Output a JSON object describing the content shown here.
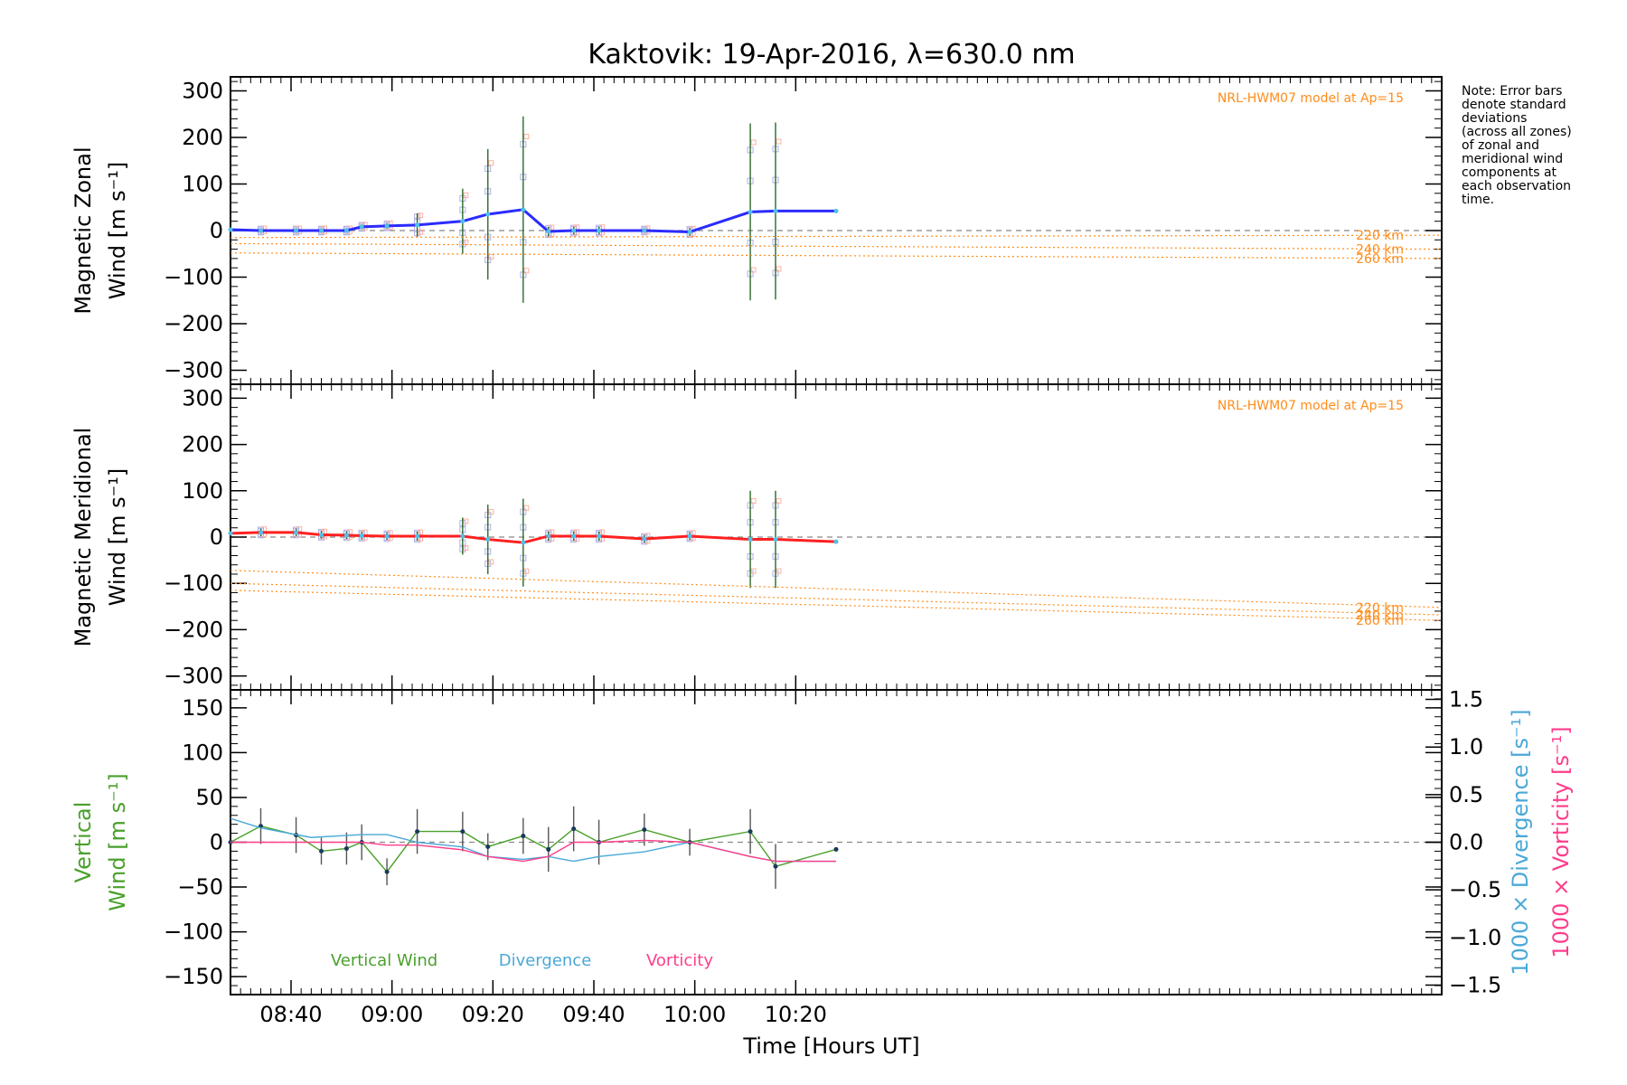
{
  "title": "Kaktovik: 19-Apr-2016, λ=630.0 nm",
  "note_lines": [
    "Note: Error bars",
    "denote standard",
    "deviations",
    "(across all zones)",
    "of zonal and",
    "meridional wind",
    "components at",
    "each observation",
    "time."
  ],
  "model_label": "NRL-HWM07 model at Ap=15",
  "xlabel": "Time [Hours UT]",
  "colors": {
    "zonal": "#2b2bff",
    "meridional": "#ff2020",
    "vertical": "#4aa02c",
    "divergence": "#4aa8d8",
    "vorticity": "#ff3d8b",
    "model": "#ff8c1a",
    "zone_zonal": "#b0b0e8",
    "zone_mer": "#b0b0e8",
    "zone_model": "#ffb0a0"
  },
  "chart_data": [
    {
      "type": "line",
      "panel": "zonal",
      "ylabel": [
        "Magnetic Zonal",
        "Wind [m s⁻¹]"
      ],
      "ylim": [
        -330,
        330
      ],
      "yticks": [
        300,
        200,
        100,
        0,
        -100,
        -200,
        -300
      ],
      "yticklabels": [
        "300",
        "200",
        "100",
        "0",
        "−100",
        "−200",
        "−300"
      ],
      "xlim": [
        508,
        748
      ],
      "xticks": [
        520,
        540,
        560,
        580,
        600,
        620
      ],
      "xticklabels": [
        "08:40",
        "09:00",
        "09:20",
        "09:40",
        "10:00",
        "10:20"
      ],
      "series": [
        {
          "key": "wind",
          "x": [
            508,
            514,
            521,
            526,
            531,
            534,
            539,
            545,
            554,
            559,
            566,
            571,
            576,
            581,
            590,
            599,
            611,
            616,
            628
          ],
          "y": [
            2,
            0,
            0,
            0,
            0,
            8,
            10,
            12,
            20,
            35,
            45,
            -2,
            0,
            0,
            0,
            -3,
            40,
            42,
            42
          ]
        },
        {
          "key": "model",
          "name": "220 km",
          "x": [
            508,
            748
          ],
          "y": [
            -15,
            -10
          ]
        },
        {
          "key": "model",
          "name": "240 km",
          "x": [
            508,
            748
          ],
          "y": [
            -28,
            -40
          ]
        },
        {
          "key": "model",
          "name": "260 km",
          "x": [
            508,
            748
          ],
          "y": [
            -48,
            -60
          ]
        }
      ],
      "errorbars": {
        "x": [
          514,
          521,
          526,
          531,
          534,
          539,
          545,
          554,
          559,
          566,
          571,
          576,
          581,
          590,
          599,
          611,
          616
        ],
        "y": [
          0,
          0,
          0,
          0,
          8,
          10,
          12,
          20,
          35,
          45,
          -2,
          0,
          0,
          0,
          -3,
          40,
          42
        ],
        "err": [
          5,
          5,
          5,
          5,
          5,
          6,
          25,
          70,
          140,
          200,
          10,
          8,
          8,
          5,
          8,
          190,
          190
        ]
      }
    },
    {
      "type": "line",
      "panel": "meridional",
      "ylabel": [
        "Magnetic Meridional",
        "Wind [m s⁻¹]"
      ],
      "ylim": [
        -330,
        330
      ],
      "yticks": [
        300,
        200,
        100,
        0,
        -100,
        -200,
        -300
      ],
      "yticklabels": [
        "300",
        "200",
        "100",
        "0",
        "−100",
        "−200",
        "−300"
      ],
      "xlim": [
        508,
        748
      ],
      "series": [
        {
          "key": "wind",
          "x": [
            508,
            514,
            521,
            526,
            531,
            534,
            539,
            545,
            554,
            559,
            566,
            571,
            576,
            581,
            590,
            599,
            611,
            616,
            628
          ],
          "y": [
            8,
            10,
            10,
            5,
            4,
            3,
            2,
            2,
            2,
            -5,
            -12,
            2,
            2,
            2,
            -4,
            2,
            -5,
            -5,
            -10
          ]
        },
        {
          "key": "model",
          "name": "220 km",
          "x": [
            508,
            748
          ],
          "y": [
            -72,
            -152
          ]
        },
        {
          "key": "model",
          "name": "240 km",
          "x": [
            508,
            748
          ],
          "y": [
            -100,
            -168
          ]
        },
        {
          "key": "model",
          "name": "260 km",
          "x": [
            508,
            748
          ],
          "y": [
            -115,
            -180
          ]
        }
      ],
      "errorbars": {
        "x": [
          514,
          521,
          526,
          531,
          534,
          539,
          545,
          554,
          559,
          566,
          571,
          576,
          581,
          590,
          599,
          611,
          616
        ],
        "y": [
          10,
          10,
          5,
          4,
          3,
          2,
          2,
          2,
          -5,
          -12,
          2,
          2,
          2,
          -4,
          2,
          -5,
          -5
        ],
        "err": [
          8,
          8,
          8,
          8,
          8,
          8,
          10,
          40,
          75,
          95,
          10,
          10,
          10,
          8,
          8,
          105,
          105
        ]
      }
    },
    {
      "type": "line",
      "panel": "vertical",
      "ylabel": [
        "Vertical",
        "Wind [m s⁻¹]"
      ],
      "ylim": [
        -170,
        170
      ],
      "yticks": [
        150,
        100,
        50,
        0,
        -50,
        -100,
        -150
      ],
      "yticklabels": [
        "150",
        "100",
        "50",
        "0",
        "−50",
        "−100",
        "−150"
      ],
      "y2label_div": "1000 × Divergence [s⁻¹]",
      "y2label_vort": "1000 × Vorticity [s⁻¹]",
      "y2lim": [
        -1.6,
        1.6
      ],
      "y2ticks": [
        1.5,
        1.0,
        0.5,
        0.0,
        -0.5,
        -1.0,
        -1.5
      ],
      "y2ticklabels": [
        "1.5",
        "1.0",
        "0.5",
        "0.0",
        "−0.5",
        "−1.0",
        "−1.5"
      ],
      "xlim": [
        508,
        748
      ],
      "legend": [
        "Vertical Wind",
        "Divergence",
        "Vorticity"
      ],
      "series": [
        {
          "key": "vertical",
          "name": "Vertical Wind",
          "x": [
            508,
            514,
            521,
            526,
            531,
            534,
            539,
            545,
            554,
            559,
            566,
            571,
            576,
            581,
            590,
            599,
            611,
            616,
            628
          ],
          "y": [
            0,
            18,
            8,
            -10,
            -7,
            0,
            -33,
            12,
            12,
            -5,
            7,
            -8,
            15,
            0,
            14,
            0,
            12,
            -27,
            -8
          ]
        },
        {
          "key": "divergence",
          "name": "Divergence",
          "x": [
            508,
            514,
            524,
            534,
            539,
            545,
            554,
            559,
            566,
            571,
            576,
            581,
            590,
            599,
            611,
            616,
            628
          ],
          "y": [
            0.25,
            0.15,
            0.05,
            0.08,
            0.08,
            0.0,
            -0.05,
            -0.15,
            -0.18,
            -0.15,
            -0.2,
            -0.15,
            -0.1,
            0.0,
            -0.15,
            -0.2,
            -0.2
          ]
        },
        {
          "key": "vorticity",
          "name": "Vorticity",
          "x": [
            508,
            514,
            524,
            534,
            539,
            545,
            554,
            559,
            566,
            571,
            576,
            581,
            590,
            599,
            611,
            616,
            628
          ],
          "y": [
            0.0,
            0.0,
            0.0,
            0.0,
            -0.03,
            -0.03,
            -0.08,
            -0.15,
            -0.2,
            -0.15,
            0.0,
            0.0,
            0.02,
            0.0,
            -0.15,
            -0.2,
            -0.2
          ]
        }
      ],
      "errorbars": {
        "x": [
          514,
          521,
          526,
          531,
          534,
          539,
          545,
          554,
          559,
          566,
          571,
          576,
          581,
          590,
          599,
          611,
          616
        ],
        "y": [
          18,
          8,
          -10,
          -7,
          0,
          -33,
          12,
          12,
          -5,
          7,
          -8,
          15,
          0,
          14,
          0,
          12,
          -27
        ],
        "err": [
          20,
          20,
          15,
          18,
          20,
          15,
          25,
          22,
          15,
          20,
          25,
          25,
          25,
          18,
          15,
          25,
          25
        ]
      }
    }
  ]
}
